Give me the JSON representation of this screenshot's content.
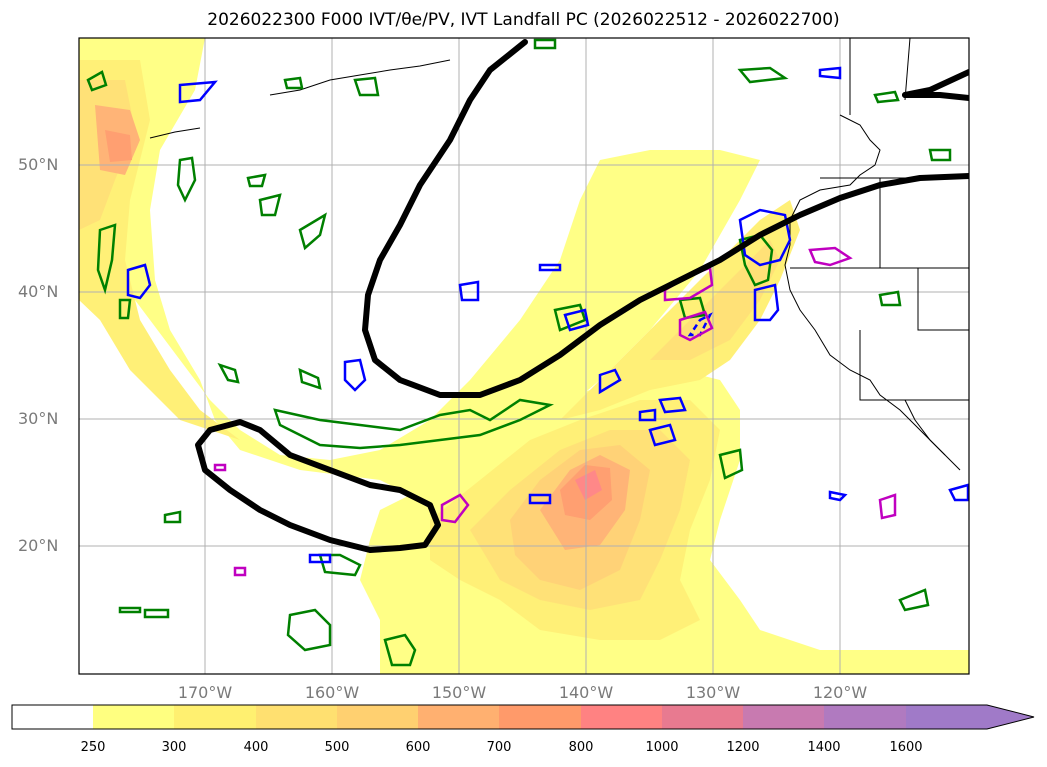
{
  "title": "2026022300 F000 IVT/θe/PV, IVT Landfall PC (2026022512 - 2026022700)",
  "lat_labels": [
    "50°N",
    "40°N",
    "30°N",
    "20°N"
  ],
  "lon_labels": [
    "170°W",
    "160°W",
    "150°W",
    "140°W",
    "130°W",
    "120°W"
  ],
  "colorbar": {
    "ticks": [
      "250",
      "300",
      "400",
      "500",
      "600",
      "700",
      "800",
      "1000",
      "1200",
      "1400",
      "1600"
    ],
    "colors": [
      "#ffffff",
      "#ffff80",
      "#fff070",
      "#ffe070",
      "#ffd070",
      "#ffb070",
      "#ff9a6a",
      "#ff8282",
      "#e87a90",
      "#c87ab0",
      "#b07ac0",
      "#a07ac8"
    ]
  },
  "colors": {
    "ivt_contour": "#000000",
    "theta_e": "#008000",
    "pv_blue": "#0000ff",
    "pv_magenta": "#c000c0",
    "grid": "#b0b0b0",
    "coast": "#000000"
  }
}
